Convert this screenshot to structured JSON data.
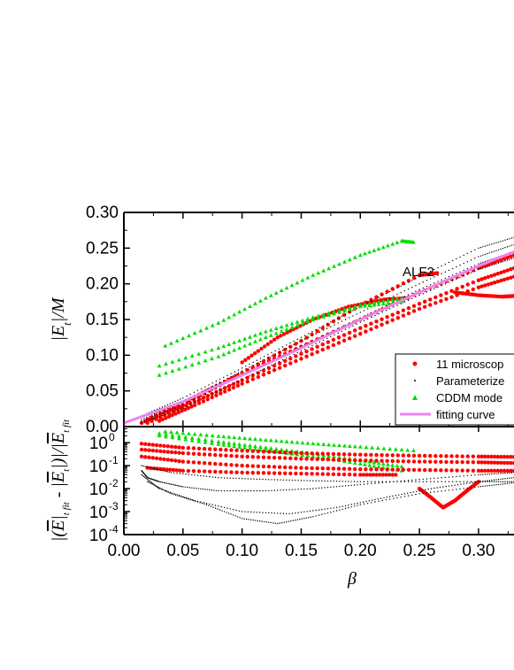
{
  "chart_data": [
    {
      "type": "scatter",
      "panel": "top",
      "ylabel": "|E_t|/M",
      "xlabel": "",
      "xlim": [
        0.0,
        0.33
      ],
      "ylim": [
        0.0,
        0.3
      ],
      "x_ticks": [
        "0.00",
        "0.05",
        "0.10",
        "0.15",
        "0.20",
        "0.25",
        "0.30"
      ],
      "y_ticks": [
        "0.00",
        "0.05",
        "0.10",
        "0.15",
        "0.20",
        "0.25",
        "0.30"
      ],
      "annotation": "ALF2",
      "legend": {
        "position": "bottom-right",
        "entries": [
          "11 microscop",
          "Parameterize",
          "CDDM mode",
          "fitting curve"
        ]
      },
      "series": [
        {
          "name": "11 microscop",
          "color": "#ff0000",
          "marker": "circle",
          "curves": [
            {
              "x": [
                0.015,
                0.05,
                0.1,
                0.15,
                0.2,
                0.25,
                0.265
              ],
              "y": [
                0.005,
                0.03,
                0.075,
                0.12,
                0.17,
                0.212,
                0.215
              ]
            },
            {
              "x": [
                0.02,
                0.06,
                0.1,
                0.15,
                0.2,
                0.25,
                0.3,
                0.33
              ],
              "y": [
                0.01,
                0.042,
                0.075,
                0.112,
                0.15,
                0.188,
                0.222,
                0.24
              ]
            },
            {
              "x": [
                0.02,
                0.06,
                0.1,
                0.15,
                0.2,
                0.25,
                0.3,
                0.33
              ],
              "y": [
                0.005,
                0.035,
                0.065,
                0.102,
                0.138,
                0.172,
                0.205,
                0.222
              ]
            },
            {
              "x": [
                0.03,
                0.06,
                0.1,
                0.15,
                0.2,
                0.25,
                0.3,
                0.33
              ],
              "y": [
                0.008,
                0.03,
                0.06,
                0.095,
                0.13,
                0.165,
                0.195,
                0.21
              ]
            },
            {
              "x": [
                0.1,
                0.13,
                0.16,
                0.19,
                0.22,
                0.24
              ],
              "y": [
                0.09,
                0.125,
                0.15,
                0.168,
                0.178,
                0.18
              ]
            },
            {
              "x": [
                0.28,
                0.3,
                0.32,
                0.33
              ],
              "y": [
                0.188,
                0.184,
                0.182,
                0.183
              ]
            }
          ]
        },
        {
          "name": "Parameterize",
          "color": "#000000",
          "marker": "dot",
          "curves": [
            {
              "x": [
                0.015,
                0.05,
                0.1,
                0.15,
                0.2,
                0.25,
                0.3,
                0.33
              ],
              "y": [
                0.015,
                0.04,
                0.082,
                0.125,
                0.168,
                0.21,
                0.25,
                0.265
              ]
            },
            {
              "x": [
                0.015,
                0.05,
                0.1,
                0.15,
                0.2,
                0.25,
                0.3,
                0.33
              ],
              "y": [
                0.01,
                0.035,
                0.078,
                0.12,
                0.16,
                0.2,
                0.238,
                0.255
              ]
            },
            {
              "x": [
                0.015,
                0.05,
                0.1,
                0.15,
                0.2,
                0.25,
                0.3,
                0.33
              ],
              "y": [
                0.008,
                0.03,
                0.072,
                0.112,
                0.152,
                0.192,
                0.228,
                0.245
              ]
            },
            {
              "x": [
                0.015,
                0.05,
                0.1,
                0.15,
                0.2,
                0.25,
                0.3,
                0.33
              ],
              "y": [
                0.005,
                0.026,
                0.066,
                0.106,
                0.146,
                0.184,
                0.22,
                0.236
              ]
            }
          ]
        },
        {
          "name": "CDDM mode",
          "color": "#00dd00",
          "marker": "triangle",
          "curves": [
            {
              "x": [
                0.035,
                0.08,
                0.12,
                0.16,
                0.2,
                0.235,
                0.245
              ],
              "y": [
                0.113,
                0.145,
                0.18,
                0.212,
                0.24,
                0.26,
                0.258
              ]
            },
            {
              "x": [
                0.03,
                0.08,
                0.12,
                0.16,
                0.2,
                0.235
              ],
              "y": [
                0.085,
                0.11,
                0.133,
                0.153,
                0.17,
                0.18
              ]
            },
            {
              "x": [
                0.03,
                0.08,
                0.12,
                0.16,
                0.2,
                0.235
              ],
              "y": [
                0.072,
                0.098,
                0.125,
                0.15,
                0.168,
                0.175
              ]
            }
          ]
        },
        {
          "name": "fitting curve",
          "color": "#ee82ee",
          "marker": "line",
          "curves": [
            {
              "x": [
                0.0,
                0.05,
                0.1,
                0.15,
                0.2,
                0.25,
                0.3,
                0.33
              ],
              "y": [
                0.005,
                0.035,
                0.072,
                0.11,
                0.15,
                0.188,
                0.225,
                0.245
              ]
            }
          ]
        }
      ]
    },
    {
      "type": "scatter",
      "panel": "bottom",
      "ylabel": "|(Ē_t)_fit - |Ē_t|)|/|Ē_t|_fit",
      "xlabel": "β",
      "xlim": [
        0.0,
        0.33
      ],
      "ylim": [
        0.0001,
        5
      ],
      "yscale": "log",
      "x_ticks": [
        "0.00",
        "0.05",
        "0.10",
        "0.15",
        "0.20",
        "0.25",
        "0.30"
      ],
      "y_ticks": [
        {
          "base": "10",
          "exp": "0"
        },
        {
          "base": "10",
          "exp": "-1"
        },
        {
          "base": "10",
          "exp": "-2"
        },
        {
          "base": "10",
          "exp": "-3"
        },
        {
          "base": "10",
          "exp": "-4"
        }
      ],
      "series": [
        {
          "name": "CDDM mode",
          "color": "#00dd00",
          "marker": "triangle",
          "curves": [
            {
              "x": [
                0.035,
                0.08,
                0.12,
                0.16,
                0.2,
                0.245
              ],
              "y": [
                3.0,
                1.9,
                1.3,
                0.9,
                0.65,
                0.45
              ]
            },
            {
              "x": [
                0.03,
                0.08,
                0.12,
                0.16,
                0.2,
                0.235
              ],
              "y": [
                2.5,
                1.1,
                0.6,
                0.33,
                0.17,
                0.09
              ]
            },
            {
              "x": [
                0.03,
                0.08,
                0.12,
                0.16,
                0.2,
                0.235
              ],
              "y": [
                2.0,
                0.85,
                0.45,
                0.25,
                0.12,
                0.06
              ]
            }
          ]
        },
        {
          "name": "11 microscop",
          "color": "#ff0000",
          "marker": "circle",
          "curves": [
            {
              "x": [
                0.015,
                0.05,
                0.1,
                0.15,
                0.2,
                0.25,
                0.3,
                0.33
              ],
              "y": [
                0.9,
                0.6,
                0.45,
                0.35,
                0.3,
                0.27,
                0.25,
                0.24
              ]
            },
            {
              "x": [
                0.015,
                0.05,
                0.1,
                0.15,
                0.2,
                0.25,
                0.3,
                0.33
              ],
              "y": [
                0.5,
                0.35,
                0.25,
                0.2,
                0.17,
                0.15,
                0.14,
                0.13
              ]
            },
            {
              "x": [
                0.015,
                0.05,
                0.1,
                0.15,
                0.2,
                0.25,
                0.3,
                0.33
              ],
              "y": [
                0.25,
                0.15,
                0.1,
                0.08,
                0.07,
                0.065,
                0.06,
                0.06
              ]
            },
            {
              "x": [
                0.02,
                0.05,
                0.1,
                0.15,
                0.2,
                0.23
              ],
              "y": [
                0.08,
                0.06,
                0.05,
                0.045,
                0.04,
                0.04
              ]
            },
            {
              "x": [
                0.25,
                0.26,
                0.27,
                0.28,
                0.29,
                0.3
              ],
              "y": [
                0.01,
                0.004,
                0.0015,
                0.003,
                0.008,
                0.02
              ]
            }
          ]
        },
        {
          "name": "Parameterize",
          "color": "#000000",
          "marker": "dot",
          "curves": [
            {
              "x": [
                0.015,
                0.02,
                0.03,
                0.05,
                0.08,
                0.12,
                0.16,
                0.2,
                0.25,
                0.3,
                0.33
              ],
              "y": [
                0.06,
                0.03,
                0.02,
                0.012,
                0.008,
                0.008,
                0.01,
                0.015,
                0.025,
                0.04,
                0.05
              ]
            },
            {
              "x": [
                0.015,
                0.03,
                0.06,
                0.1,
                0.14,
                0.18,
                0.22,
                0.26,
                0.3,
                0.33
              ],
              "y": [
                0.04,
                0.01,
                0.003,
                0.001,
                0.0008,
                0.0015,
                0.004,
                0.01,
                0.02,
                0.03
              ]
            },
            {
              "x": [
                0.02,
                0.04,
                0.07,
                0.1,
                0.13,
                0.16,
                0.2,
                0.25,
                0.3,
                0.33
              ],
              "y": [
                0.02,
                0.006,
                0.002,
                0.0005,
                0.0003,
                0.0006,
                0.002,
                0.006,
                0.012,
                0.018
              ]
            },
            {
              "x": [
                0.015,
                0.04,
                0.08,
                0.12,
                0.16,
                0.2,
                0.25,
                0.3,
                0.33
              ],
              "y": [
                0.1,
                0.05,
                0.03,
                0.025,
                0.022,
                0.02,
                0.02,
                0.02,
                0.02
              ]
            }
          ]
        }
      ]
    }
  ]
}
